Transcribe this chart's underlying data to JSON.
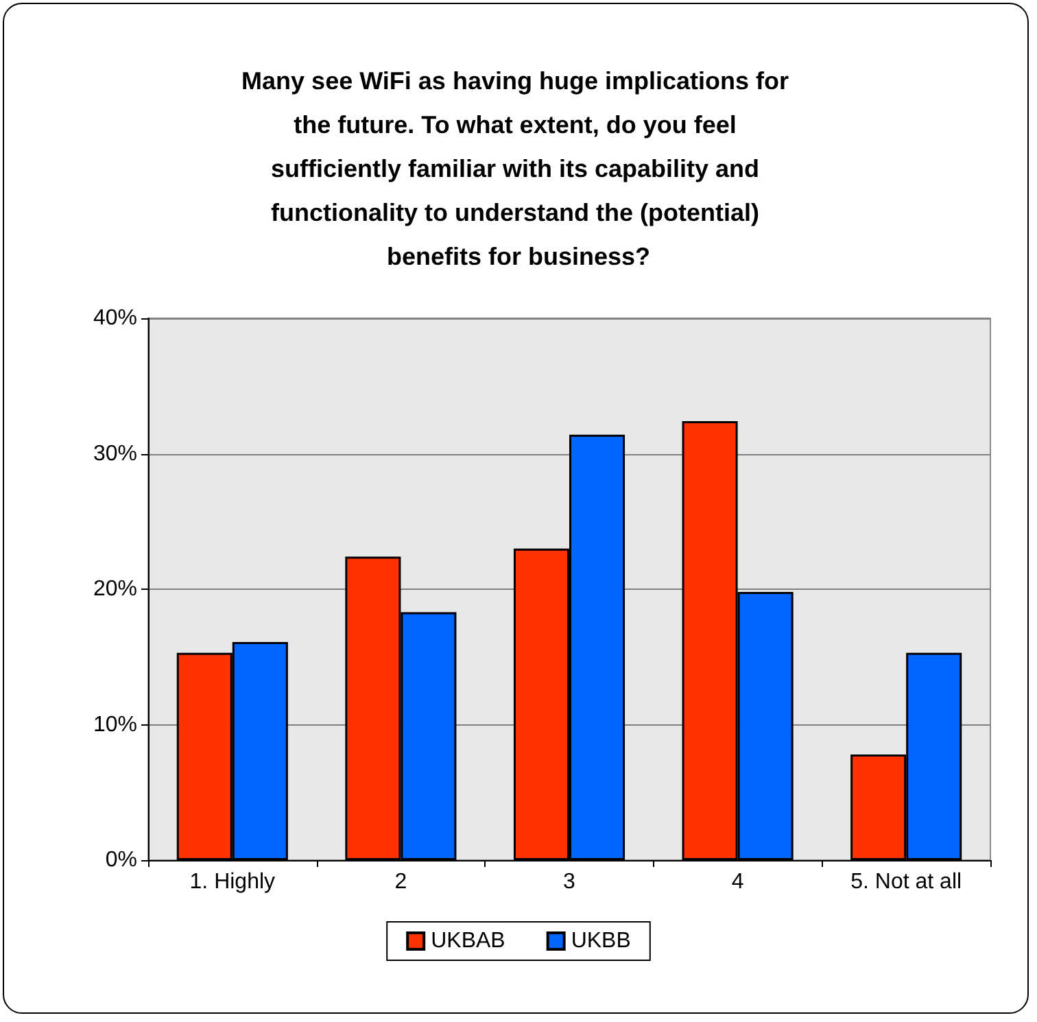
{
  "chart_data": {
    "type": "bar",
    "title": "Many see WiFi as having huge implications for the future. To what extent, do you feel sufficiently familiar with its capability and functionality to understand the (potential) benefits for business?",
    "categories": [
      "1. Highly",
      "2",
      "3",
      "4",
      "5. Not at all"
    ],
    "series": [
      {
        "name": "UKBAB",
        "color": "#ff3300",
        "values": [
          15.3,
          22.4,
          23.0,
          32.4,
          7.8
        ]
      },
      {
        "name": "UKBB",
        "color": "#0066ff",
        "values": [
          16.1,
          18.3,
          31.4,
          19.8,
          15.3
        ]
      }
    ],
    "ylim": [
      0,
      40
    ],
    "yticks": [
      {
        "value": 0,
        "label": "0%"
      },
      {
        "value": 10,
        "label": "10%"
      },
      {
        "value": 20,
        "label": "20%"
      },
      {
        "value": 30,
        "label": "30%"
      },
      {
        "value": 40,
        "label": "40%"
      }
    ],
    "grid": "y",
    "legend": "bottom"
  }
}
